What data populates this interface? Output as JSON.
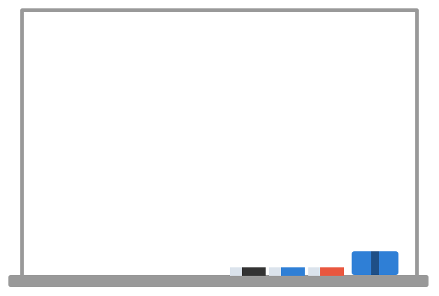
{
  "colors": {
    "frame": "#999999",
    "surface": "#ffffff",
    "marker_cap": "#dbe3ec",
    "marker_black": "#333333",
    "marker_blue": "#2f7fd6",
    "marker_red": "#e9573f",
    "eraser_body": "#2f7fd6",
    "eraser_handle": "#1f4f86"
  },
  "markers": [
    {
      "name": "black-marker",
      "icon": "marker-icon"
    },
    {
      "name": "blue-marker",
      "icon": "marker-icon"
    },
    {
      "name": "red-marker",
      "icon": "marker-icon"
    }
  ],
  "eraser": {
    "icon": "eraser-icon"
  }
}
